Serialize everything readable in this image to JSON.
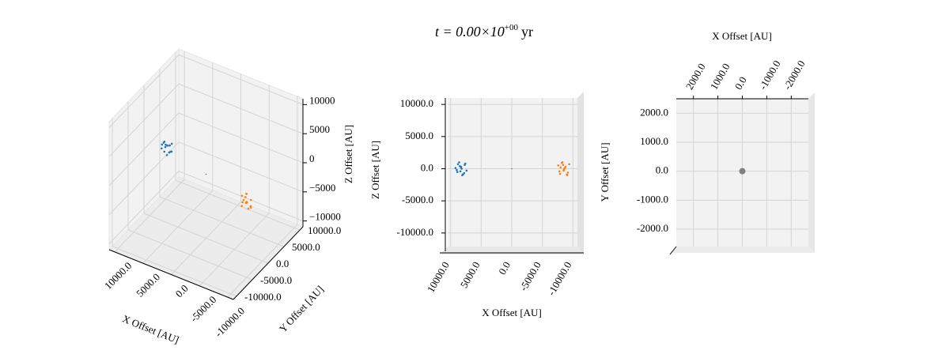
{
  "title": {
    "base": "t = 0.00×10",
    "exponent": "+00",
    "unit": "yr"
  },
  "particles": [
    {
      "color": "#1f77b4",
      "size": 1.3,
      "x": [
        7400,
        7700,
        8000,
        8300,
        8600,
        8900,
        9200,
        7600,
        8100,
        8500,
        9000,
        7800,
        8800,
        8200,
        8400,
        8300
      ],
      "y": [
        2300,
        2900,
        1900,
        2600,
        2200,
        3000,
        2500,
        2100,
        2800,
        2400,
        2000,
        2700,
        2300,
        3100,
        1800,
        2500
      ],
      "z": [
        -300,
        600,
        -900,
        200,
        1000,
        -500,
        100,
        800,
        -1000,
        400,
        -200,
        -700,
        700,
        0,
        -400,
        300
      ]
    },
    {
      "color": "#ff7f0e",
      "size": 1.3,
      "x": [
        -7600,
        -7900,
        -8200,
        -8500,
        -8800,
        -9100,
        -9400,
        -7800,
        -8300,
        -8700,
        -9200,
        -8000,
        -9000,
        -8400,
        -8600,
        -8500
      ],
      "y": [
        -2200,
        -2800,
        -1900,
        -2500,
        -3000,
        -2100,
        -2600,
        -2400,
        -2000,
        -2900,
        -2300,
        -1800,
        -2700,
        -3100,
        -2500,
        -2200
      ],
      "z": [
        500,
        -800,
        900,
        -200,
        300,
        -1000,
        700,
        -400,
        1000,
        100,
        -600,
        200,
        -900,
        600,
        0,
        -300
      ]
    },
    {
      "color": "#2ca02c",
      "size": 0.8,
      "x": [
        0
      ],
      "y": [
        0
      ],
      "z": [
        0
      ]
    }
  ],
  "chart_data": [
    {
      "type": "scatter3d",
      "projection": "oblique",
      "xlabel": "X Offset [AU]",
      "ylabel": "Y Offset [AU]",
      "zlabel": "Z Offset [AU]",
      "xlim": [
        -11000,
        11000
      ],
      "ylim": [
        -11000,
        11000
      ],
      "zlim": [
        -11000,
        11000
      ],
      "xticks": [
        {
          "value": 10000,
          "label": "10000.0"
        },
        {
          "value": 5000,
          "label": "5000.0"
        },
        {
          "value": 0,
          "label": "0.0"
        },
        {
          "value": -5000,
          "label": "-5000.0"
        },
        {
          "value": -10000,
          "label": "-10000.0"
        }
      ],
      "yticks": [
        {
          "value": 10000,
          "label": "10000.0"
        },
        {
          "value": 5000,
          "label": "5000.0"
        },
        {
          "value": 0,
          "label": "0.0"
        },
        {
          "value": -5000,
          "label": "-5000.0"
        },
        {
          "value": -10000,
          "label": "-10000.0"
        }
      ],
      "zticks": [
        10000,
        5000,
        0,
        {
          "value": -5000,
          "label": "−5000"
        },
        {
          "value": -10000,
          "label": "−10000"
        }
      ],
      "grid": true
    },
    {
      "type": "scatter3d",
      "projection": "xz",
      "xlabel": "X Offset [AU]",
      "zlabel": "Z Offset [AU]",
      "xlim": [
        -11000,
        11000
      ],
      "zlim": [
        -11000,
        11000
      ],
      "xticks": [
        {
          "value": 10000,
          "label": "10000.0"
        },
        {
          "value": 5000,
          "label": "5000.0"
        },
        {
          "value": 0,
          "label": "0.0"
        },
        {
          "value": -5000,
          "label": "-5000.0"
        },
        {
          "value": -10000,
          "label": "-10000.0"
        }
      ],
      "zticks": [
        {
          "value": 10000,
          "label": "10000.0"
        },
        {
          "value": 5000,
          "label": "5000.0"
        },
        {
          "value": 0,
          "label": "0.0"
        },
        {
          "value": -5000,
          "label": "-5000.0"
        },
        {
          "value": -10000,
          "label": "-10000.0"
        }
      ],
      "grid": true
    },
    {
      "type": "scatter3d",
      "projection": "xy",
      "xlabel": "X Offset [AU]",
      "ylabel": "Y Offset [AU]",
      "xlim": [
        -2700,
        2700
      ],
      "ylim": [
        -2600,
        2500
      ],
      "xticks": [
        {
          "value": 2000,
          "label": "2000.0"
        },
        {
          "value": 1000,
          "label": "1000.0"
        },
        {
          "value": 0,
          "label": "0.0"
        },
        {
          "value": -1000,
          "label": "-1000.0"
        },
        {
          "value": -2000,
          "label": "-2000.0"
        }
      ],
      "yticks": [
        {
          "value": 2000,
          "label": "2000.0"
        },
        {
          "value": 1000,
          "label": "1000.0"
        },
        {
          "value": 0,
          "label": "0.0"
        },
        {
          "value": -1000,
          "label": "-1000.0"
        },
        {
          "value": -2000,
          "label": "-2000.0"
        }
      ],
      "series": [
        {
          "color": "#808080",
          "size": 4,
          "x": [
            0
          ],
          "y": [
            0
          ]
        }
      ],
      "grid": true
    }
  ]
}
